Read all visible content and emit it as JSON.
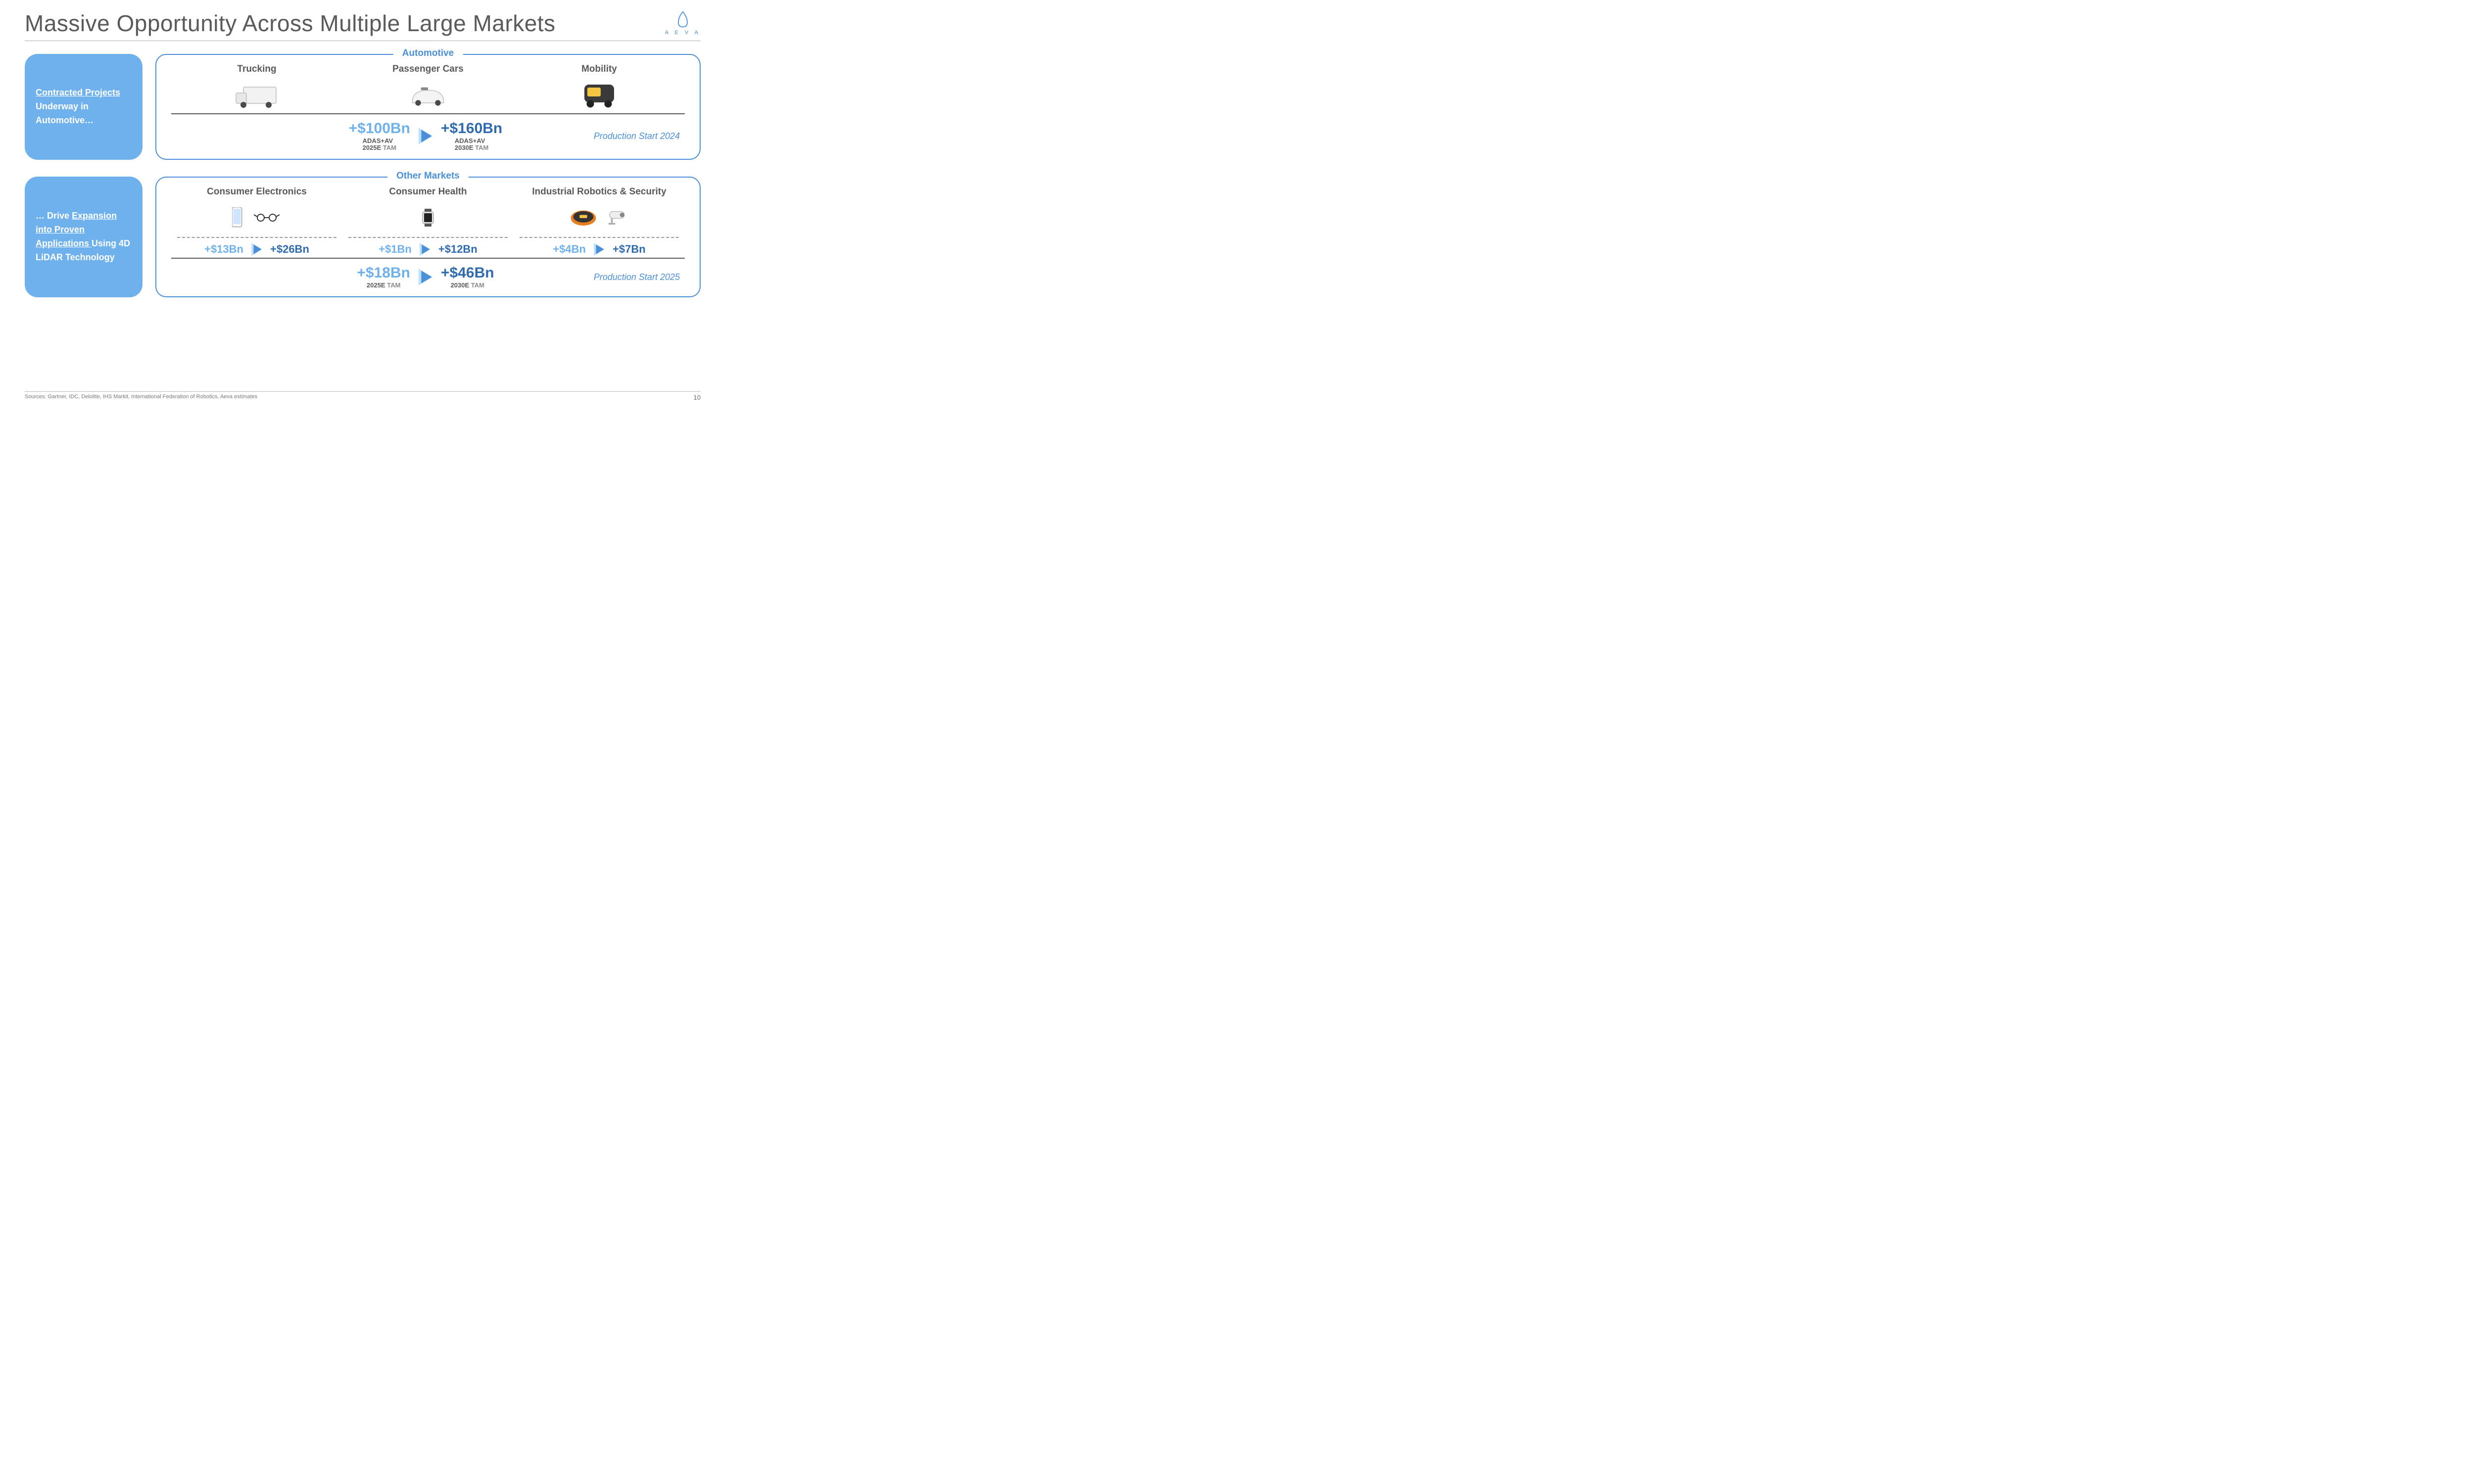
{
  "title": "Massive Opportunity Across Multiple Large Markets",
  "logo_text": "A E V A",
  "page_number": "10",
  "sources": "Sources: Gartner, IDC, Deloitte, IHS Markit, International Federation of Robotics, Aeva estimates",
  "colors": {
    "accent": "#4a90d9",
    "side_bg": "#6fb1ec",
    "val_light": "#6fb1ec",
    "val_dark": "#2f6bb0",
    "text": "#595959"
  },
  "sections": [
    {
      "side_html": "<span class='u'>Contracted Projects</span> <span class='nu'>Underway in Automotive…</span>",
      "panel_label": "Automotive",
      "production_start": "Production Start 2024",
      "columns": [
        {
          "label": "Trucking",
          "icon": "truck"
        },
        {
          "label": "Passenger Cars",
          "icon": "car"
        },
        {
          "label": "Mobility",
          "icon": "rover"
        }
      ],
      "sub_growth": null,
      "totals": {
        "from": "+$100Bn",
        "from_sub1": "ADAS+AV",
        "from_sub2": "2025E",
        "from_sub3": "TAM",
        "to": "+$160Bn",
        "to_sub1": "ADAS+AV",
        "to_sub2": "2030E",
        "to_sub3": "TAM"
      }
    },
    {
      "side_html": "<span class='nu'>… Drive </span><span class='u'>Expansion into Proven Applications </span><span class='nu'>Using 4D LiDAR Technology</span>",
      "panel_label": "Other Markets",
      "production_start": "Production Start 2025",
      "columns": [
        {
          "label": "Consumer Electronics",
          "icon": "phone-glasses",
          "from": "+$13Bn",
          "to": "+$26Bn"
        },
        {
          "label": "Consumer Health",
          "icon": "watch",
          "from": "+$1Bn",
          "to": "+$12Bn"
        },
        {
          "label": "Industrial Robotics & Security",
          "icon": "robot-camera",
          "from": "+$4Bn",
          "to": "+$7Bn"
        }
      ],
      "totals": {
        "from": "+$18Bn",
        "from_sub1": "",
        "from_sub2": "2025E",
        "from_sub3": "TAM",
        "to": "+$46Bn",
        "to_sub1": "",
        "to_sub2": "2030E",
        "to_sub3": "TAM"
      }
    }
  ]
}
